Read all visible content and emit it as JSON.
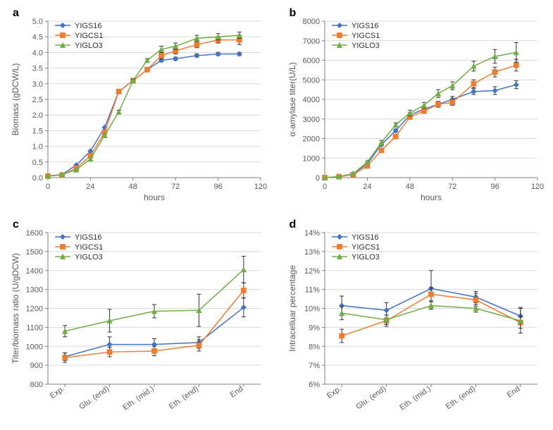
{
  "colors": {
    "blue": "#4472c4",
    "orange": "#ed7d31",
    "green": "#70ad47",
    "grid": "#d9d9d9",
    "axis": "#7f7f7f",
    "text": "#595959",
    "bg": "#ffffff"
  },
  "series_keys": [
    "YIGS16",
    "YIGCS1",
    "YIGLO3"
  ],
  "markers": {
    "YIGS16": "diamond",
    "YIGCS1": "square",
    "YIGLO3": "triangle"
  },
  "legend_fontsize": 11,
  "tick_fontsize": 11,
  "axis_title_fontsize": 12,
  "panel_label_fontsize": 16,
  "panels": {
    "a": {
      "label": "a",
      "ylabel": "Biomass (gDCW/L)",
      "xlabel": "hours",
      "x_numeric": true,
      "xlim": [
        0,
        120
      ],
      "xtick_step": 24,
      "ylim": [
        0,
        5
      ],
      "ytick_step": 0.5,
      "y_decimals": 1,
      "grid": true,
      "x": [
        0,
        8,
        16,
        24,
        32,
        40,
        48,
        56,
        64,
        72,
        84,
        96,
        108
      ],
      "series": {
        "YIGS16": {
          "y": [
            0.05,
            0.1,
            0.4,
            0.85,
            1.6,
            2.75,
            3.1,
            3.45,
            3.75,
            3.8,
            3.9,
            3.95,
            3.95
          ],
          "err": [
            0,
            0,
            0,
            0,
            0,
            0.05,
            0.05,
            0.05,
            0.05,
            0.05,
            0.05,
            0.05,
            0.05
          ]
        },
        "YIGCS1": {
          "y": [
            0.05,
            0.08,
            0.3,
            0.7,
            1.45,
            2.75,
            3.1,
            3.45,
            3.9,
            4.05,
            4.25,
            4.4,
            4.4
          ],
          "err": [
            0,
            0,
            0,
            0,
            0,
            0.05,
            0.05,
            0.05,
            0.1,
            0.1,
            0.1,
            0.1,
            0.15
          ]
        },
        "YIGLO3": {
          "y": [
            0.05,
            0.1,
            0.25,
            0.6,
            1.35,
            2.1,
            3.1,
            3.75,
            4.1,
            4.2,
            4.45,
            4.5,
            4.55
          ],
          "err": [
            0,
            0,
            0,
            0,
            0,
            0.05,
            0.05,
            0.05,
            0.1,
            0.1,
            0.1,
            0.1,
            0.1
          ]
        }
      }
    },
    "b": {
      "label": "b",
      "ylabel": "α-amylase titer(U/L)",
      "xlabel": "hours",
      "x_numeric": true,
      "xlim": [
        0,
        120
      ],
      "xtick_step": 24,
      "ylim": [
        0,
        8000
      ],
      "ytick_step": 1000,
      "y_decimals": 0,
      "grid": true,
      "x": [
        0,
        8,
        16,
        24,
        32,
        40,
        48,
        56,
        64,
        72,
        84,
        96,
        108
      ],
      "series": {
        "YIGS16": {
          "y": [
            0,
            50,
            200,
            700,
            1700,
            2400,
            3200,
            3500,
            3750,
            4000,
            4400,
            4450,
            4750
          ],
          "err": [
            0,
            0,
            0,
            50,
            80,
            80,
            120,
            120,
            120,
            150,
            150,
            200,
            200
          ]
        },
        "YIGCS1": {
          "y": [
            0,
            50,
            150,
            600,
            1400,
            2100,
            3100,
            3400,
            3750,
            3850,
            4800,
            5400,
            5750
          ],
          "err": [
            0,
            0,
            0,
            50,
            80,
            80,
            120,
            120,
            150,
            150,
            200,
            250,
            300
          ]
        },
        "YIGLO3": {
          "y": [
            0,
            50,
            200,
            800,
            1800,
            2700,
            3300,
            3700,
            4300,
            4700,
            5700,
            6200,
            6400
          ],
          "err": [
            0,
            0,
            0,
            50,
            100,
            100,
            150,
            150,
            200,
            200,
            250,
            350,
            500
          ]
        }
      }
    },
    "c": {
      "label": "c",
      "ylabel": "Titer/biomass ratio (U/gDCW)",
      "xlabel": "",
      "x_numeric": false,
      "categories": [
        "Exp.",
        "Glu. (end)",
        "Eth. (mid.)",
        "Eth. (end)",
        "End"
      ],
      "ylim": [
        800,
        1600
      ],
      "ytick_step": 100,
      "y_decimals": 0,
      "grid": true,
      "series": {
        "YIGS16": {
          "y": [
            945,
            1010,
            1010,
            1020,
            1205
          ],
          "err": [
            20,
            40,
            30,
            30,
            50
          ]
        },
        "YIGCS1": {
          "y": [
            940,
            970,
            975,
            1005,
            1295
          ],
          "err": [
            25,
            25,
            25,
            30,
            40
          ]
        },
        "YIGLO3": {
          "y": [
            1080,
            1135,
            1185,
            1190,
            1405
          ],
          "err": [
            30,
            60,
            35,
            85,
            70
          ]
        }
      }
    },
    "d": {
      "label": "d",
      "ylabel": "Intracelluar percentage",
      "xlabel": "",
      "x_numeric": false,
      "categories": [
        "Exp.",
        "Glu. (end)",
        "Eth. (mid.)",
        "Eth. (end)",
        "End"
      ],
      "ylim": [
        6,
        14
      ],
      "ytick_step": 1,
      "y_decimals": 0,
      "y_percent": true,
      "grid": true,
      "series": {
        "YIGS16": {
          "y": [
            10.15,
            9.9,
            11.05,
            10.6,
            9.6
          ],
          "err": [
            0.5,
            0.4,
            0.95,
            0.3,
            0.45
          ]
        },
        "YIGCS1": {
          "y": [
            8.55,
            9.35,
            10.75,
            10.45,
            9.25
          ],
          "err": [
            0.35,
            0.3,
            0.35,
            0.35,
            0.3
          ]
        },
        "YIGLO3": {
          "y": [
            9.75,
            9.4,
            10.15,
            10.0,
            9.35
          ],
          "err": [
            0.35,
            0.25,
            0.2,
            0.2,
            0.65
          ]
        }
      }
    }
  }
}
